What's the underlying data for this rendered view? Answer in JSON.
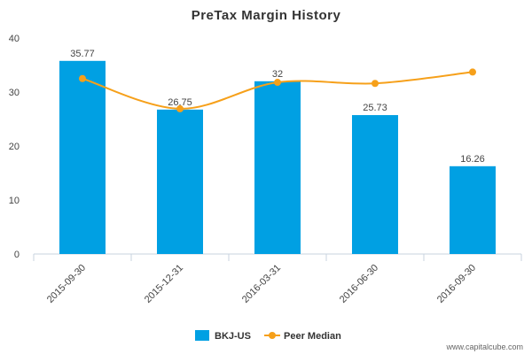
{
  "chart_data": {
    "type": "bar",
    "title": "PreTax Margin History",
    "categories": [
      "2015-09-30",
      "2015-12-31",
      "2016-03-31",
      "2016-06-30",
      "2016-09-30"
    ],
    "series": [
      {
        "name": "BKJ-US",
        "kind": "bar",
        "color": "#00a0e3",
        "values": [
          35.77,
          26.75,
          32,
          25.73,
          16.26
        ],
        "labels": [
          "35.77",
          "26.75",
          "32",
          "25.73",
          "16.26"
        ]
      },
      {
        "name": "Peer Median",
        "kind": "line",
        "color": "#f6a01a",
        "values": [
          32.5,
          26.9,
          31.8,
          31.6,
          33.7
        ]
      }
    ],
    "ylim": [
      0,
      40
    ],
    "yticks": [
      "0",
      "10",
      "20",
      "30",
      "40"
    ],
    "grid": false,
    "legend_position": "bottom-center",
    "credit": "www.capitalcube.com"
  }
}
